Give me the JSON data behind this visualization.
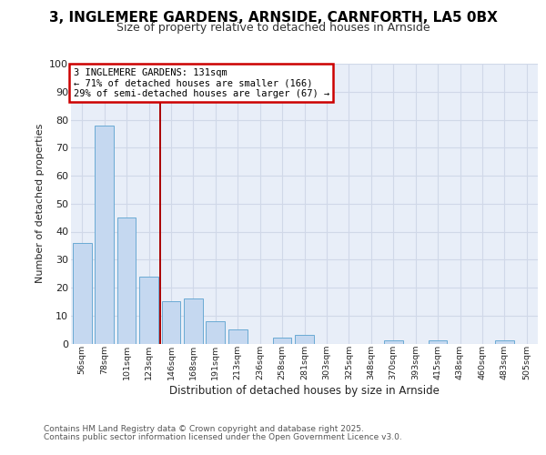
{
  "title1": "3, INGLEMERE GARDENS, ARNSIDE, CARNFORTH, LA5 0BX",
  "title2": "Size of property relative to detached houses in Arnside",
  "xlabel": "Distribution of detached houses by size in Arnside",
  "ylabel": "Number of detached properties",
  "categories": [
    "56sqm",
    "78sqm",
    "101sqm",
    "123sqm",
    "146sqm",
    "168sqm",
    "191sqm",
    "213sqm",
    "236sqm",
    "258sqm",
    "281sqm",
    "303sqm",
    "325sqm",
    "348sqm",
    "370sqm",
    "393sqm",
    "415sqm",
    "438sqm",
    "460sqm",
    "483sqm",
    "505sqm"
  ],
  "values": [
    36,
    78,
    45,
    24,
    15,
    16,
    8,
    5,
    0,
    2,
    3,
    0,
    0,
    0,
    1,
    0,
    1,
    0,
    0,
    1,
    0
  ],
  "bar_color": "#c5d8f0",
  "bar_edge_color": "#6aaad4",
  "vline_x_index": 3.5,
  "vline_color": "#aa0000",
  "annotation_title": "3 INGLEMERE GARDENS: 131sqm",
  "annotation_line1": "← 71% of detached houses are smaller (166)",
  "annotation_line2": "29% of semi-detached houses are larger (67) →",
  "annotation_box_edgecolor": "#cc0000",
  "ylim": [
    0,
    100
  ],
  "yticks": [
    0,
    10,
    20,
    30,
    40,
    50,
    60,
    70,
    80,
    90,
    100
  ],
  "footer_line1": "Contains HM Land Registry data © Crown copyright and database right 2025.",
  "footer_line2": "Contains public sector information licensed under the Open Government Licence v3.0.",
  "bg_color": "#e8eef8",
  "grid_color": "#d0d8e8",
  "title1_fontsize": 11,
  "title2_fontsize": 9
}
